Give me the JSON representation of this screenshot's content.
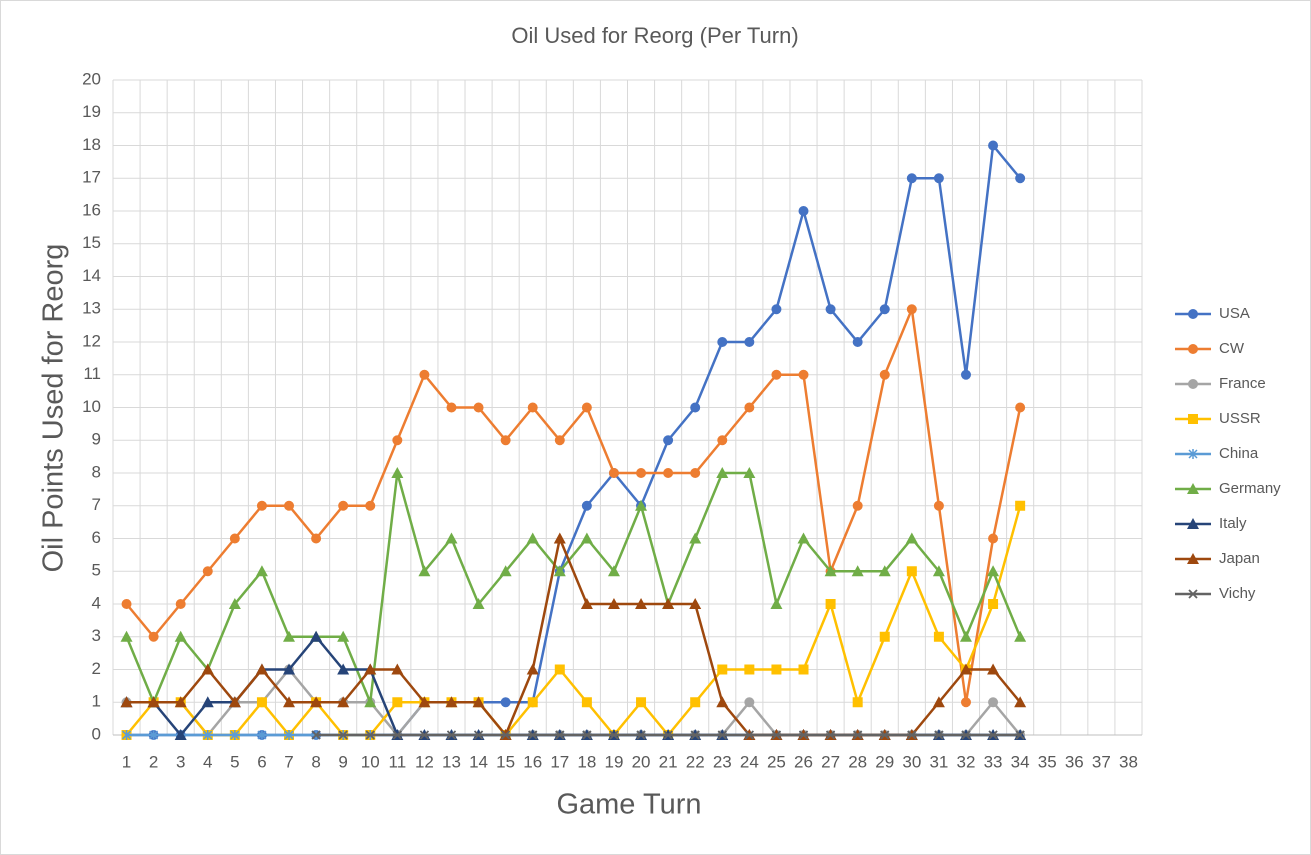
{
  "chart_data": {
    "type": "line",
    "title": "Oil Used for Reorg (Per Turn)",
    "x_label": "Game Turn",
    "y_label": "Oil Points Used for Reorg",
    "categories": [
      1,
      2,
      3,
      4,
      5,
      6,
      7,
      8,
      9,
      10,
      11,
      12,
      13,
      14,
      15,
      16,
      17,
      18,
      19,
      20,
      21,
      22,
      23,
      24,
      25,
      26,
      27,
      28,
      29,
      30,
      31,
      32,
      33,
      34,
      35,
      36,
      37,
      38
    ],
    "ylim": [
      0,
      20
    ],
    "yticks": [
      0,
      1,
      2,
      3,
      4,
      5,
      6,
      7,
      8,
      9,
      10,
      11,
      12,
      13,
      14,
      15,
      16,
      17,
      18,
      19,
      20
    ],
    "grid": true,
    "legend": "right",
    "series": [
      {
        "name": "USA",
        "color": "#4472c4",
        "marker": "circle",
        "values": [
          0,
          0,
          0,
          0,
          0,
          0,
          0,
          0,
          0,
          0,
          0,
          1,
          1,
          1,
          1,
          1,
          5,
          7,
          8,
          7,
          9,
          10,
          12,
          12,
          13,
          16,
          13,
          12,
          13,
          17,
          17,
          11,
          18,
          17,
          null,
          null,
          null,
          null
        ]
      },
      {
        "name": "CW",
        "color": "#ed7d31",
        "marker": "circle",
        "values": [
          4,
          3,
          4,
          5,
          6,
          7,
          7,
          6,
          7,
          7,
          9,
          11,
          10,
          10,
          9,
          10,
          9,
          10,
          8,
          8,
          8,
          8,
          9,
          10,
          11,
          11,
          5,
          7,
          11,
          13,
          7,
          1,
          6,
          10,
          null,
          null,
          null,
          null
        ]
      },
      {
        "name": "France",
        "color": "#a5a5a5",
        "marker": "circle",
        "values": [
          1,
          1,
          1,
          0,
          1,
          1,
          2,
          1,
          1,
          1,
          0,
          1,
          1,
          1,
          0,
          0,
          0,
          0,
          0,
          0,
          0,
          0,
          0,
          1,
          0,
          0,
          0,
          0,
          0,
          0,
          0,
          0,
          1,
          0,
          null,
          null,
          null,
          null
        ]
      },
      {
        "name": "USSR",
        "color": "#ffc000",
        "marker": "square",
        "values": [
          0,
          1,
          1,
          0,
          0,
          1,
          0,
          1,
          0,
          0,
          1,
          1,
          1,
          1,
          0,
          1,
          2,
          1,
          0,
          1,
          0,
          1,
          2,
          2,
          2,
          2,
          4,
          1,
          3,
          5,
          3,
          2,
          4,
          7,
          null,
          null,
          null,
          null
        ]
      },
      {
        "name": "China",
        "color": "#5b9bd5",
        "marker": "star",
        "values": [
          0,
          0,
          0,
          0,
          0,
          0,
          0,
          0,
          0,
          0,
          0,
          0,
          0,
          0,
          0,
          0,
          0,
          0,
          0,
          0,
          0,
          0,
          0,
          0,
          0,
          0,
          0,
          0,
          0,
          0,
          0,
          0,
          0,
          0,
          null,
          null,
          null,
          null
        ]
      },
      {
        "name": "Germany",
        "color": "#70ad47",
        "marker": "triangle",
        "values": [
          3,
          1,
          3,
          2,
          4,
          5,
          3,
          3,
          3,
          1,
          8,
          5,
          6,
          4,
          5,
          6,
          5,
          6,
          5,
          7,
          4,
          6,
          8,
          8,
          4,
          6,
          5,
          5,
          5,
          6,
          5,
          3,
          5,
          3,
          null,
          null,
          null,
          null
        ]
      },
      {
        "name": "Italy",
        "color": "#264478",
        "marker": "triangle",
        "values": [
          1,
          1,
          0,
          1,
          1,
          2,
          2,
          3,
          2,
          2,
          0,
          0,
          0,
          0,
          0,
          0,
          0,
          0,
          0,
          0,
          0,
          0,
          0,
          0,
          0,
          0,
          0,
          0,
          0,
          0,
          0,
          0,
          0,
          0,
          null,
          null,
          null,
          null
        ]
      },
      {
        "name": "Japan",
        "color": "#9e480e",
        "marker": "triangle",
        "values": [
          1,
          1,
          1,
          2,
          1,
          2,
          1,
          1,
          1,
          2,
          2,
          1,
          1,
          1,
          0,
          2,
          6,
          4,
          4,
          4,
          4,
          4,
          1,
          0,
          0,
          0,
          0,
          0,
          0,
          0,
          1,
          2,
          2,
          1,
          null,
          null,
          null,
          null
        ]
      },
      {
        "name": "Vichy",
        "color": "#636363",
        "marker": "x",
        "values": [
          null,
          null,
          null,
          null,
          null,
          null,
          null,
          0,
          0,
          0,
          0,
          0,
          0,
          0,
          0,
          0,
          0,
          0,
          0,
          0,
          0,
          0,
          0,
          0,
          0,
          0,
          0,
          0,
          0,
          0,
          0,
          0,
          0,
          0,
          null,
          null,
          null,
          null
        ]
      }
    ]
  }
}
